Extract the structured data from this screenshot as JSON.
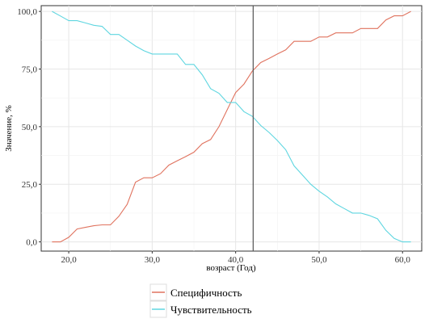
{
  "chart_data": {
    "type": "line",
    "xlabel": "возраст (Год)",
    "ylabel": "Значение, %",
    "xlim": [
      16.7,
      62.3
    ],
    "ylim": [
      -4,
      102.5
    ],
    "x_ticks": [
      20,
      30,
      40,
      50,
      60
    ],
    "x_tick_labels": [
      "20,0",
      "30,0",
      "40,0",
      "50,0",
      "60,0"
    ],
    "y_ticks": [
      0,
      25,
      50,
      75,
      100
    ],
    "y_tick_labels": [
      "0,0",
      "25,0",
      "50,0",
      "75,0",
      "100,0"
    ],
    "grid": true,
    "legend_position": "bottom",
    "reference_line": {
      "x": 42.1,
      "color": "#555555"
    },
    "series": [
      {
        "name": "Специфичность",
        "color": "#e0735f",
        "x": [
          18,
          19,
          20,
          21,
          22,
          23,
          24,
          25,
          26,
          27,
          28,
          29,
          30,
          31,
          32,
          33,
          34,
          35,
          36,
          37,
          38,
          39,
          40,
          41,
          42,
          43,
          44,
          45,
          46,
          47,
          48,
          49,
          50,
          51,
          52,
          53,
          54,
          55,
          56,
          57,
          58,
          59,
          60,
          61
        ],
        "y": [
          0,
          0,
          2,
          5.6,
          6.3,
          7,
          7.4,
          7.4,
          11.1,
          16.3,
          25.9,
          27.8,
          27.8,
          29.6,
          33.3,
          35.2,
          37,
          38.9,
          42.6,
          44.4,
          50,
          57.4,
          64.8,
          68.5,
          74.1,
          77.8,
          79.6,
          81.5,
          83.3,
          87,
          87,
          87,
          88.9,
          88.9,
          90.7,
          90.7,
          90.7,
          92.6,
          92.6,
          92.6,
          96.3,
          98.1,
          98.1,
          100
        ]
      },
      {
        "name": "Чувствительность",
        "color": "#5fd6e0",
        "x": [
          18,
          19,
          20,
          21,
          22,
          23,
          24,
          25,
          26,
          27,
          28,
          29,
          30,
          31,
          32,
          33,
          34,
          35,
          36,
          37,
          38,
          39,
          40,
          41,
          42,
          43,
          44,
          45,
          46,
          47,
          48,
          49,
          50,
          51,
          52,
          53,
          54,
          55,
          56,
          57,
          58,
          59,
          60,
          61
        ],
        "y": [
          100,
          98,
          96,
          96,
          95,
          94,
          93.5,
          90,
          90,
          87.5,
          85,
          83,
          81.5,
          81.5,
          81.5,
          81.5,
          77,
          77,
          72.5,
          66.5,
          64.5,
          60.5,
          60.5,
          56.5,
          54.5,
          50.5,
          47.5,
          44,
          40,
          33,
          29,
          25,
          22,
          19.5,
          16.5,
          14.5,
          12.5,
          12.5,
          11.5,
          10,
          5,
          1.5,
          0,
          0
        ]
      }
    ]
  }
}
